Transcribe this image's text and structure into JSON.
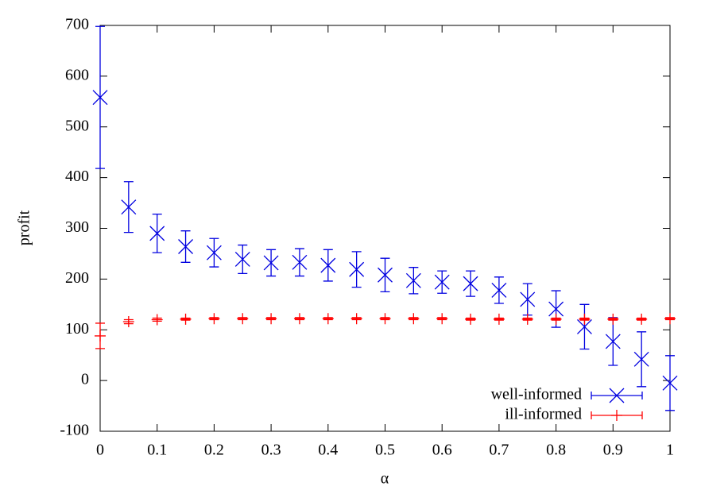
{
  "chart_data": {
    "type": "errorbar",
    "x_label": "α",
    "y_label": "profit",
    "xlim": [
      0,
      1
    ],
    "ylim": [
      -100,
      700
    ],
    "xticks": [
      0,
      0.1,
      0.2,
      0.3,
      0.4,
      0.5,
      0.6,
      0.7,
      0.8,
      0.9,
      1
    ],
    "yticks": [
      -100,
      0,
      100,
      200,
      300,
      400,
      500,
      600,
      700
    ],
    "legend": "lower right",
    "series": [
      {
        "name": "well-informed",
        "color": "#0000e0",
        "marker": "x",
        "x": [
          0,
          0.05,
          0.1,
          0.15,
          0.2,
          0.25,
          0.3,
          0.35,
          0.4,
          0.45,
          0.5,
          0.55,
          0.6,
          0.65,
          0.7,
          0.75,
          0.8,
          0.85,
          0.9,
          0.95,
          1
        ],
        "values": [
          558,
          342,
          290,
          264,
          252,
          239,
          232,
          233,
          227,
          219,
          208,
          197,
          194,
          191,
          178,
          160,
          141,
          106,
          77,
          42,
          -5
        ],
        "errors": [
          140,
          50,
          38,
          31,
          28,
          28,
          26,
          27,
          31,
          35,
          33,
          26,
          22,
          25,
          26,
          31,
          36,
          44,
          47,
          54,
          54
        ]
      },
      {
        "name": "ill-informed",
        "color": "#ff0000",
        "marker": "+",
        "x": [
          0,
          0.05,
          0.1,
          0.15,
          0.2,
          0.25,
          0.3,
          0.35,
          0.4,
          0.45,
          0.5,
          0.55,
          0.6,
          0.65,
          0.7,
          0.75,
          0.8,
          0.85,
          0.9,
          0.95,
          1
        ],
        "values": [
          88,
          116,
          120,
          121,
          122,
          122,
          122,
          122,
          122,
          122,
          122,
          122,
          122,
          121,
          121,
          121,
          121,
          121,
          121,
          121,
          122
        ],
        "errors": [
          25,
          4,
          3,
          2,
          2,
          2,
          2,
          2,
          2,
          2,
          2,
          2,
          2,
          2,
          2,
          2,
          2,
          2,
          2,
          2,
          2
        ]
      }
    ]
  }
}
